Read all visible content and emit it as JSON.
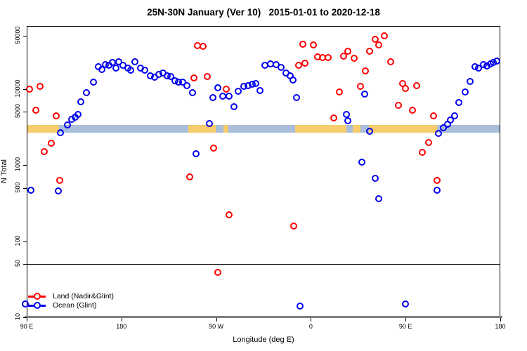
{
  "title": "25N-30N January (Ver 10)   2015-01-01 to 2020-12-18",
  "colors": {
    "land": "#ff0000",
    "ocean": "#0000ee",
    "band_land": "#f7cc6c",
    "band_ocean": "#a9beda",
    "axis_thick_line": "#808080"
  },
  "legend": {
    "items": [
      {
        "label": "Land (Nadir&Glint)",
        "color": "#ff0000"
      },
      {
        "label": "Ocean (Glint)",
        "color": "#0000ee"
      }
    ]
  },
  "chart_data": {
    "type": "scatter",
    "title": "25N-30N January (Ver 10)   2015-01-01 to 2020-12-18",
    "x_axis": {
      "label": "Longitude (deg E)",
      "note": "axis spans 450 degrees eastward starting at 90E; deg = degrees east of 90E along axis",
      "ticks": [
        {
          "label": "90 E",
          "deg": 0
        },
        {
          "label": "180",
          "deg": 90
        },
        {
          "label": "90 W",
          "deg": 180
        },
        {
          "label": "0",
          "deg": 270
        },
        {
          "label": "90 E",
          "deg": 360
        },
        {
          "label": "180",
          "deg": 450
        }
      ],
      "span_deg": 450
    },
    "y_axis": {
      "label": "N Total",
      "scale": "log10",
      "ticks": [
        10,
        50,
        100,
        500,
        1000,
        5000,
        10000,
        50000
      ],
      "range": [
        9.4,
        66000
      ],
      "hline_value": 50
    },
    "band": {
      "description": "land/ocean strip drawn across plot at N≈3000",
      "center_value": 3000,
      "segments": [
        {
          "from": 0,
          "to": 31,
          "type": "land"
        },
        {
          "from": 31,
          "to": 153.5,
          "type": "ocean"
        },
        {
          "from": 153.5,
          "to": 179.5,
          "type": "land"
        },
        {
          "from": 179.5,
          "to": 187,
          "type": "ocean"
        },
        {
          "from": 187,
          "to": 191.5,
          "type": "land"
        },
        {
          "from": 191.5,
          "to": 255,
          "type": "ocean"
        },
        {
          "from": 255,
          "to": 304,
          "type": "land"
        },
        {
          "from": 304,
          "to": 310,
          "type": "ocean"
        },
        {
          "from": 310,
          "to": 317,
          "type": "land"
        },
        {
          "from": 317,
          "to": 325,
          "type": "ocean"
        },
        {
          "from": 325,
          "to": 390,
          "type": "land"
        },
        {
          "from": 390,
          "to": 450,
          "type": "ocean"
        }
      ]
    },
    "series": [
      {
        "name": "Land (Nadir&Glint)",
        "color": "#ff0000",
        "points": [
          [
            2.7,
            9900
          ],
          [
            12.7,
            10800
          ],
          [
            8.7,
            5230
          ],
          [
            28,
            4420
          ],
          [
            23.4,
            1930
          ],
          [
            16.7,
            1500
          ],
          [
            31.4,
            627
          ],
          [
            158.9,
            13900
          ],
          [
            171.6,
            14500
          ],
          [
            162.3,
            36900
          ],
          [
            167.6,
            36100
          ],
          [
            189.6,
            9900
          ],
          [
            177.6,
            1660
          ],
          [
            154.9,
            697
          ],
          [
            192.3,
            222
          ],
          [
            181.6,
            39
          ],
          [
            253.7,
            158
          ],
          [
            258.4,
            20400
          ],
          [
            264.4,
            21700
          ],
          [
            262.4,
            38500
          ],
          [
            272.4,
            37700
          ],
          [
            276.4,
            26300
          ],
          [
            281,
            25700
          ],
          [
            286.4,
            25700
          ],
          [
            301.1,
            26800
          ],
          [
            305.1,
            31100
          ],
          [
            311.1,
            25200
          ],
          [
            317.1,
            10800
          ],
          [
            297.1,
            9100
          ],
          [
            291.8,
            4150
          ],
          [
            321.8,
            17200
          ],
          [
            325.8,
            31100
          ],
          [
            331.2,
            44700
          ],
          [
            334.5,
            37700
          ],
          [
            339.9,
            49600
          ],
          [
            345.9,
            22600
          ],
          [
            353.2,
            6070
          ],
          [
            357.2,
            11700
          ],
          [
            359.9,
            10100
          ],
          [
            366.6,
            5230
          ],
          [
            370.6,
            11000
          ],
          [
            386.6,
            4420
          ],
          [
            381.9,
            1970
          ],
          [
            375.9,
            1470
          ],
          [
            389.9,
            627
          ]
        ]
      },
      {
        "name": "Ocean (Glint)",
        "color": "#0000ee",
        "points": [
          [
            -1.3,
            15
          ],
          [
            4,
            470
          ],
          [
            30,
            456
          ],
          [
            32,
            2650
          ],
          [
            38.7,
            3350
          ],
          [
            42.7,
            3970
          ],
          [
            46.1,
            4240
          ],
          [
            48.7,
            4610
          ],
          [
            51.4,
            6760
          ],
          [
            56.8,
            8900
          ],
          [
            63.4,
            12200
          ],
          [
            68.1,
            19500
          ],
          [
            71.4,
            17900
          ],
          [
            74.8,
            20800
          ],
          [
            78.1,
            20400
          ],
          [
            81.4,
            22200
          ],
          [
            84.8,
            18700
          ],
          [
            87.5,
            22600
          ],
          [
            91.5,
            20400
          ],
          [
            96.1,
            18700
          ],
          [
            98.8,
            17500
          ],
          [
            102.8,
            22600
          ],
          [
            108.2,
            18700
          ],
          [
            112.2,
            17500
          ],
          [
            117.5,
            14800
          ],
          [
            121.5,
            14200
          ],
          [
            125.5,
            15500
          ],
          [
            129.5,
            16100
          ],
          [
            133.5,
            14800
          ],
          [
            136.9,
            14500
          ],
          [
            140.9,
            12800
          ],
          [
            144.2,
            12200
          ],
          [
            148.2,
            12200
          ],
          [
            152.2,
            11000
          ],
          [
            157.6,
            8900
          ],
          [
            160.9,
            1400
          ],
          [
            173.6,
            3500
          ],
          [
            176.9,
            7670
          ],
          [
            181.6,
            10300
          ],
          [
            186.3,
            8000
          ],
          [
            192.3,
            8000
          ],
          [
            197,
            5820
          ],
          [
            201,
            9290
          ],
          [
            206.3,
            10800
          ],
          [
            210.3,
            11000
          ],
          [
            214.3,
            11500
          ],
          [
            217.7,
            11700
          ],
          [
            221.7,
            9500
          ],
          [
            226.4,
            20400
          ],
          [
            231.7,
            21200
          ],
          [
            237.1,
            20800
          ],
          [
            241.7,
            19000
          ],
          [
            246.4,
            16100
          ],
          [
            250.4,
            14800
          ],
          [
            253.1,
            13000
          ],
          [
            256.4,
            7670
          ],
          [
            259.8,
            14
          ],
          [
            303.8,
            4610
          ],
          [
            305.1,
            3800
          ],
          [
            318.5,
            1090
          ],
          [
            321.2,
            8530
          ],
          [
            325.8,
            2770
          ],
          [
            331.2,
            668
          ],
          [
            334.5,
            361
          ],
          [
            359.9,
            15
          ],
          [
            389.9,
            466
          ],
          [
            391.3,
            2600
          ],
          [
            395.9,
            3080
          ],
          [
            399.9,
            3430
          ],
          [
            402.6,
            3890
          ],
          [
            406.6,
            4420
          ],
          [
            410.6,
            6610
          ],
          [
            416.6,
            9100
          ],
          [
            421.2,
            12500
          ],
          [
            425.9,
            19500
          ],
          [
            429.2,
            18700
          ],
          [
            433.9,
            20800
          ],
          [
            437.2,
            19900
          ],
          [
            440.6,
            21200
          ],
          [
            443.2,
            22200
          ],
          [
            446.6,
            23200
          ]
        ]
      }
    ]
  }
}
